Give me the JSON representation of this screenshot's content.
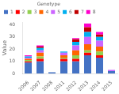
{
  "chart_data": {
    "type": "bar",
    "stacked": true,
    "categories": [
      "2006",
      "2007",
      "2008",
      "2011",
      "2012",
      "2013",
      "2014",
      "2015"
    ],
    "series": [
      {
        "name": "1",
        "color": "#4472C4",
        "values": [
          9,
          10,
          1,
          10,
          10,
          15,
          13,
          2
        ]
      },
      {
        "name": "2",
        "color": "#FF0000",
        "values": [
          1,
          2,
          0,
          2,
          2,
          2,
          2,
          0
        ]
      },
      {
        "name": "3",
        "color": "#92D050",
        "values": [
          1,
          2,
          0,
          1,
          3,
          2,
          3,
          0
        ]
      },
      {
        "name": "4",
        "color": "#FF6600",
        "values": [
          1,
          3,
          0,
          2,
          4,
          5,
          4,
          0
        ]
      },
      {
        "name": "5",
        "color": "#CC66FF",
        "values": [
          1,
          2,
          0,
          2,
          4,
          6,
          5,
          1
        ]
      },
      {
        "name": "6",
        "color": "#00B0F0",
        "values": [
          1,
          2,
          0,
          1,
          3,
          4,
          3,
          0
        ]
      },
      {
        "name": "7",
        "color": "#C00000",
        "values": [
          0,
          1,
          0,
          0,
          2,
          4,
          2,
          0
        ]
      },
      {
        "name": "8",
        "color": "#FF00CC",
        "values": [
          1,
          1,
          0,
          0,
          1,
          3,
          2,
          0
        ]
      }
    ],
    "ylabel": "Value",
    "ylim": [
      0,
      42
    ],
    "yticks": [
      0,
      10,
      20,
      30,
      40
    ],
    "legend_title": "Genotype",
    "legend": "upper left",
    "grid": false
  }
}
